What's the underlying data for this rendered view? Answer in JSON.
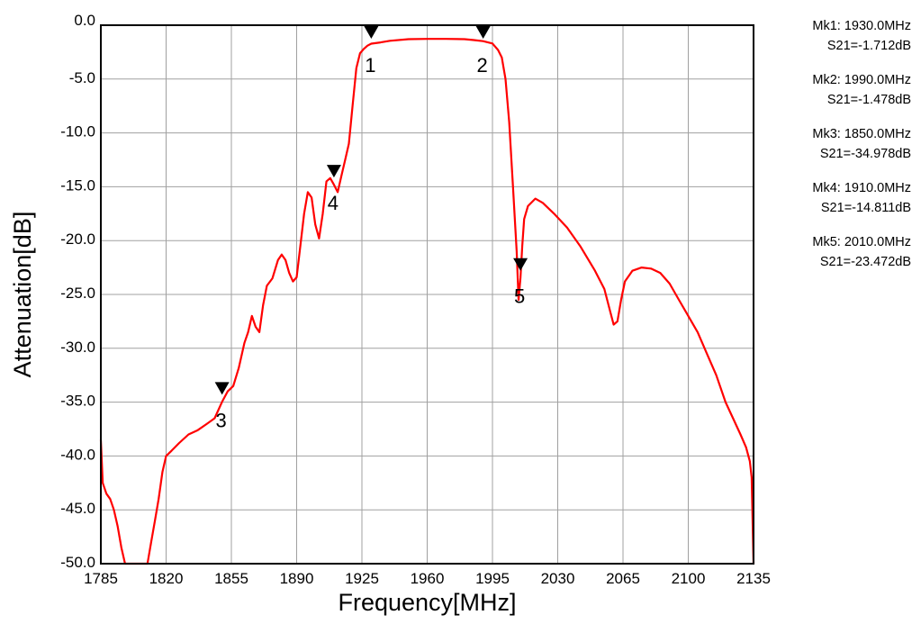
{
  "chart_data": {
    "type": "line",
    "title": "",
    "xlabel": "Frequency[MHz]",
    "ylabel": "Attenuation[dB]",
    "xlim": [
      1785,
      2135
    ],
    "ylim": [
      -50,
      0
    ],
    "grid": true,
    "x_ticks": [
      "1785",
      "1820",
      "1855",
      "1890",
      "1925",
      "1960",
      "1995",
      "2030",
      "2065",
      "2100",
      "2135"
    ],
    "y_ticks": [
      "0.0",
      "-5.0",
      "-10.0",
      "-15.0",
      "-20.0",
      "-25.0",
      "-30.0",
      "-35.0",
      "-40.0",
      "-45.0",
      "-50.0"
    ],
    "series": [
      {
        "color": "#ff0000",
        "points": [
          [
            1785,
            -38.5
          ],
          [
            1786,
            -42.5
          ],
          [
            1788,
            -43.5
          ],
          [
            1790,
            -44.0
          ],
          [
            1792,
            -45.0
          ],
          [
            1794,
            -46.5
          ],
          [
            1796,
            -48.5
          ],
          [
            1798,
            -50.0
          ],
          [
            1810,
            -50.0
          ],
          [
            1812,
            -48.0
          ],
          [
            1814,
            -46.0
          ],
          [
            1816,
            -44.0
          ],
          [
            1818,
            -41.5
          ],
          [
            1820,
            -40.0
          ],
          [
            1823,
            -39.5
          ],
          [
            1827,
            -38.8
          ],
          [
            1832,
            -38.0
          ],
          [
            1837,
            -37.6
          ],
          [
            1842,
            -37.0
          ],
          [
            1846,
            -36.5
          ],
          [
            1850,
            -34.98
          ],
          [
            1853,
            -34.0
          ],
          [
            1856,
            -33.5
          ],
          [
            1859,
            -31.8
          ],
          [
            1862,
            -29.5
          ],
          [
            1864,
            -28.5
          ],
          [
            1866,
            -27.0
          ],
          [
            1868,
            -28.0
          ],
          [
            1870,
            -28.5
          ],
          [
            1872,
            -26.0
          ],
          [
            1874,
            -24.2
          ],
          [
            1877,
            -23.5
          ],
          [
            1880,
            -21.8
          ],
          [
            1882,
            -21.3
          ],
          [
            1884,
            -21.8
          ],
          [
            1886,
            -23.0
          ],
          [
            1888,
            -23.8
          ],
          [
            1890,
            -23.4
          ],
          [
            1892,
            -20.5
          ],
          [
            1894,
            -17.5
          ],
          [
            1896,
            -15.5
          ],
          [
            1898,
            -16.0
          ],
          [
            1900,
            -18.5
          ],
          [
            1902,
            -19.8
          ],
          [
            1904,
            -17.5
          ],
          [
            1906,
            -14.5
          ],
          [
            1908,
            -14.2
          ],
          [
            1910,
            -14.81
          ],
          [
            1912,
            -15.5
          ],
          [
            1914,
            -14.0
          ],
          [
            1916,
            -12.5
          ],
          [
            1918,
            -11.0
          ],
          [
            1920,
            -7.5
          ],
          [
            1922,
            -4.0
          ],
          [
            1924,
            -2.6
          ],
          [
            1926,
            -2.2
          ],
          [
            1928,
            -1.9
          ],
          [
            1930,
            -1.712
          ],
          [
            1935,
            -1.6
          ],
          [
            1940,
            -1.45
          ],
          [
            1950,
            -1.3
          ],
          [
            1960,
            -1.27
          ],
          [
            1970,
            -1.27
          ],
          [
            1980,
            -1.3
          ],
          [
            1985,
            -1.38
          ],
          [
            1990,
            -1.478
          ],
          [
            1995,
            -1.7
          ],
          [
            1998,
            -2.3
          ],
          [
            2000,
            -3.0
          ],
          [
            2002,
            -5.0
          ],
          [
            2004,
            -9.0
          ],
          [
            2006,
            -15.0
          ],
          [
            2008,
            -21.0
          ],
          [
            2009,
            -25.5
          ],
          [
            2010,
            -23.472
          ],
          [
            2011,
            -20.5
          ],
          [
            2012,
            -18.0
          ],
          [
            2014,
            -16.8
          ],
          [
            2018,
            -16.1
          ],
          [
            2022,
            -16.5
          ],
          [
            2028,
            -17.5
          ],
          [
            2035,
            -18.8
          ],
          [
            2042,
            -20.5
          ],
          [
            2050,
            -22.8
          ],
          [
            2055,
            -24.5
          ],
          [
            2058,
            -26.5
          ],
          [
            2060,
            -27.8
          ],
          [
            2062,
            -27.5
          ],
          [
            2064,
            -25.5
          ],
          [
            2066,
            -23.8
          ],
          [
            2070,
            -22.8
          ],
          [
            2075,
            -22.5
          ],
          [
            2080,
            -22.6
          ],
          [
            2085,
            -23.0
          ],
          [
            2090,
            -24.0
          ],
          [
            2095,
            -25.5
          ],
          [
            2100,
            -27.0
          ],
          [
            2105,
            -28.5
          ],
          [
            2110,
            -30.5
          ],
          [
            2115,
            -32.5
          ],
          [
            2120,
            -35.0
          ],
          [
            2124,
            -36.5
          ],
          [
            2128,
            -38.0
          ],
          [
            2131,
            -39.2
          ],
          [
            2133,
            -40.5
          ],
          [
            2134,
            -42.0
          ],
          [
            2135,
            -50.0
          ]
        ]
      }
    ],
    "markers": [
      {
        "label": "1",
        "x": 1930,
        "y": -1.712,
        "pos": "top"
      },
      {
        "label": "2",
        "x": 1990,
        "y": -1.478,
        "pos": "top"
      },
      {
        "label": "3",
        "x": 1850,
        "y": -34.978,
        "pos": "on-curve"
      },
      {
        "label": "4",
        "x": 1910,
        "y": -14.811,
        "pos": "on-curve"
      },
      {
        "label": "5",
        "x": 2010,
        "y": -23.472,
        "pos": "on-curve"
      }
    ]
  },
  "legend": [
    {
      "freq": "Mk1: 1930.0MHz",
      "s21": "S21=-1.712dB"
    },
    {
      "freq": "Mk2: 1990.0MHz",
      "s21": "S21=-1.478dB"
    },
    {
      "freq": "Mk3: 1850.0MHz",
      "s21": "S21=-34.978dB"
    },
    {
      "freq": "Mk4: 1910.0MHz",
      "s21": "S21=-14.811dB"
    },
    {
      "freq": "Mk5: 2010.0MHz",
      "s21": "S21=-23.472dB"
    }
  ]
}
